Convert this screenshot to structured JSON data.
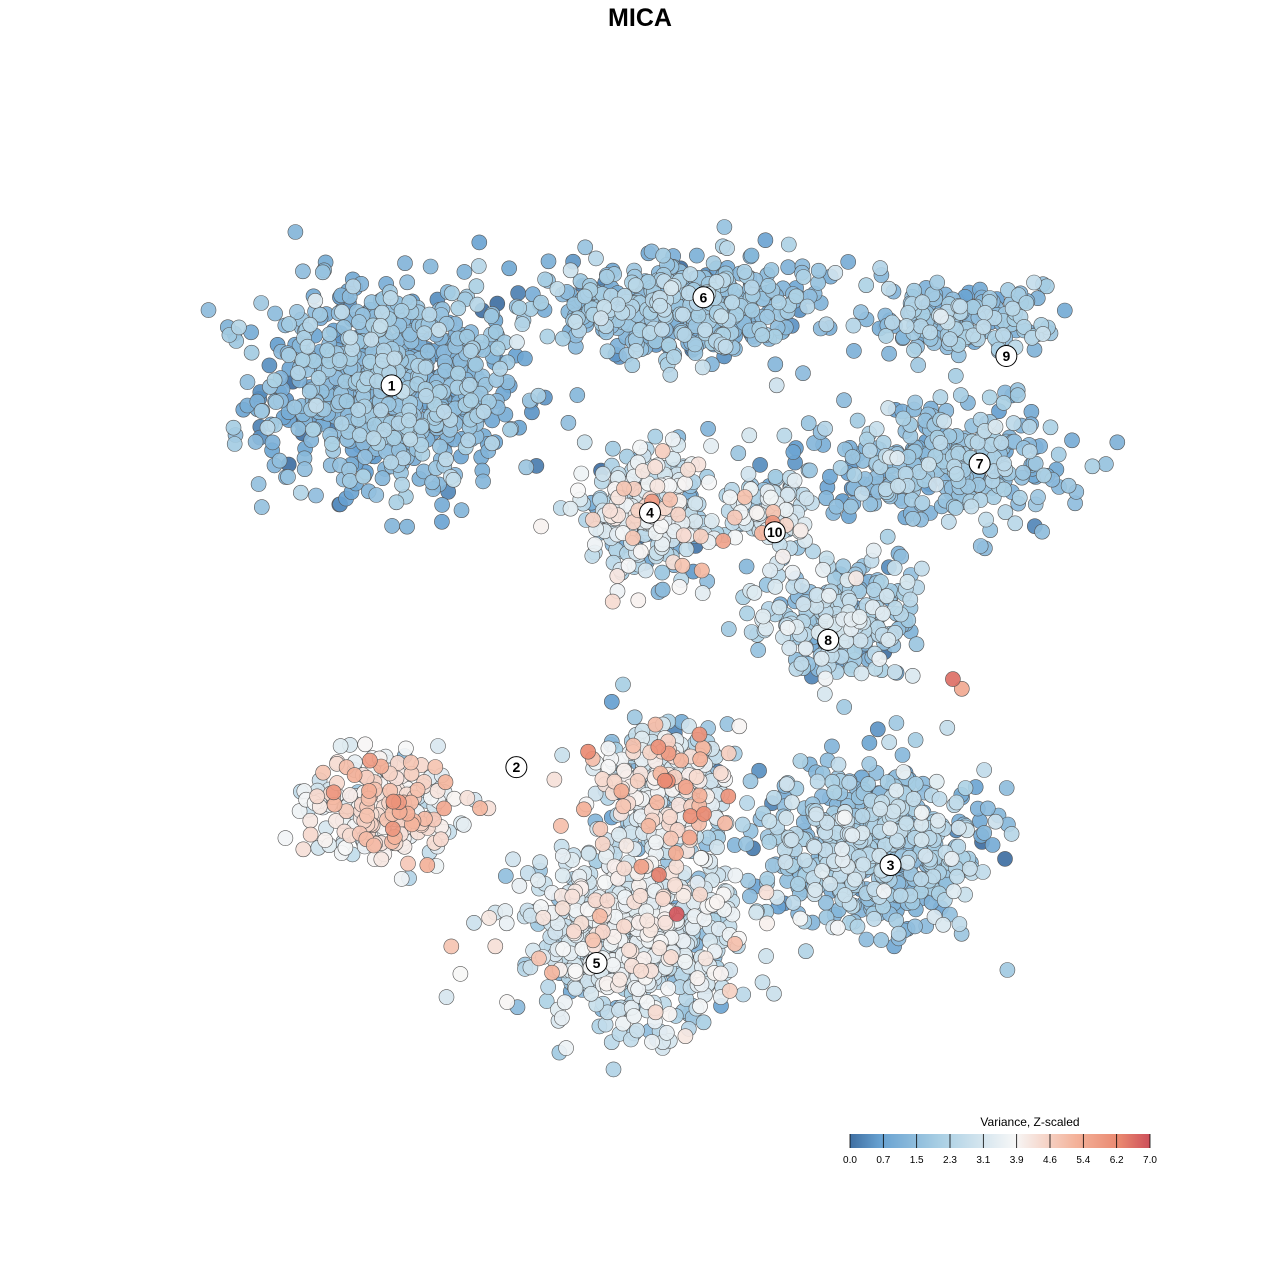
{
  "chart_data": {
    "type": "scatter",
    "title": "MICA",
    "xlabel": "",
    "ylabel": "",
    "grid": false,
    "legend": {
      "title": "Variance, Z-scaled",
      "placement": "bottom-right",
      "ticks": [
        "0.0",
        "0.7",
        "1.5",
        "2.3",
        "3.1",
        "3.9",
        "4.6",
        "5.4",
        "6.2",
        "7.0"
      ],
      "range": [
        0,
        7
      ]
    },
    "colors": {
      "low": "#3f6fa2",
      "lowmid": "#67a1d1",
      "mid": "#a9cfe4",
      "center": "#f7f7f7",
      "highmid": "#f4b39b",
      "high": "#e9876f",
      "max": "#cd4f5a"
    },
    "clusters": [
      {
        "id": "1",
        "x": 2.6,
        "y": 7.3,
        "sx": 1.3,
        "sy": 0.95,
        "n": 900,
        "mean": 1.4,
        "sd": 0.55
      },
      {
        "id": "2",
        "x": 2.5,
        "y": 3.0,
        "sx": 0.75,
        "sy": 0.45,
        "n": 260,
        "mean": 3.9,
        "sd": 0.85
      },
      {
        "id": "3",
        "x": 8.0,
        "y": 2.6,
        "sx": 1.15,
        "sy": 0.75,
        "n": 650,
        "mean": 1.8,
        "sd": 0.7
      },
      {
        "id": "4",
        "x": 5.5,
        "y": 6.0,
        "sx": 0.65,
        "sy": 0.55,
        "n": 320,
        "mean": 2.6,
        "sd": 1.1
      },
      {
        "id": "5",
        "x": 5.3,
        "y": 1.7,
        "sx": 1.05,
        "sy": 0.8,
        "n": 700,
        "mean": 2.9,
        "sd": 0.75
      },
      {
        "id": "6",
        "x": 5.8,
        "y": 8.1,
        "sx": 1.35,
        "sy": 0.45,
        "n": 500,
        "mean": 1.6,
        "sd": 0.6
      },
      {
        "id": "7",
        "x": 8.8,
        "y": 6.5,
        "sx": 1.25,
        "sy": 0.55,
        "n": 330,
        "mean": 1.6,
        "sd": 0.6
      },
      {
        "id": "8",
        "x": 7.6,
        "y": 4.9,
        "sx": 0.8,
        "sy": 0.55,
        "n": 260,
        "mean": 2.1,
        "sd": 0.85
      },
      {
        "id": "9",
        "x": 9.0,
        "y": 8.0,
        "sx": 1.0,
        "sy": 0.35,
        "n": 180,
        "mean": 1.7,
        "sd": 0.6
      },
      {
        "id": "10",
        "x": 6.8,
        "y": 6.0,
        "sx": 0.45,
        "sy": 0.45,
        "n": 110,
        "mean": 2.6,
        "sd": 0.9
      },
      {
        "id": "",
        "x": 5.7,
        "y": 3.2,
        "sx": 0.75,
        "sy": 0.6,
        "n": 330,
        "mean": 3.0,
        "sd": 1.1
      }
    ],
    "label_positions": [
      {
        "label": "1",
        "x": 2.6,
        "y": 7.3
      },
      {
        "label": "2",
        "x": 4.0,
        "y": 3.4
      },
      {
        "label": "3",
        "x": 8.2,
        "y": 2.4
      },
      {
        "label": "4",
        "x": 5.5,
        "y": 6.0
      },
      {
        "label": "5",
        "x": 4.9,
        "y": 1.4
      },
      {
        "label": "6",
        "x": 6.1,
        "y": 8.2
      },
      {
        "label": "7",
        "x": 9.2,
        "y": 6.5
      },
      {
        "label": "8",
        "x": 7.5,
        "y": 4.7
      },
      {
        "label": "9",
        "x": 9.5,
        "y": 7.6
      },
      {
        "label": "10",
        "x": 6.9,
        "y": 5.8
      }
    ],
    "hotspots": [
      {
        "x": 4.5,
        "y": 2.8,
        "value": 5.0
      },
      {
        "x": 2.4,
        "y": 2.6,
        "value": 5.1
      },
      {
        "x": 3.0,
        "y": 2.4,
        "value": 5.3
      },
      {
        "x": 5.2,
        "y": 3.0,
        "value": 4.9
      },
      {
        "x": 5.6,
        "y": 2.3,
        "value": 6.4
      },
      {
        "x": 5.8,
        "y": 1.9,
        "value": 6.9
      },
      {
        "x": 8.9,
        "y": 4.3,
        "value": 6.6
      },
      {
        "x": 9.0,
        "y": 4.2,
        "value": 5.5
      },
      {
        "x": 4.4,
        "y": 1.3,
        "value": 5.2
      }
    ],
    "xlim": [
      0,
      11
    ],
    "ylim": [
      0,
      9.5
    ]
  }
}
